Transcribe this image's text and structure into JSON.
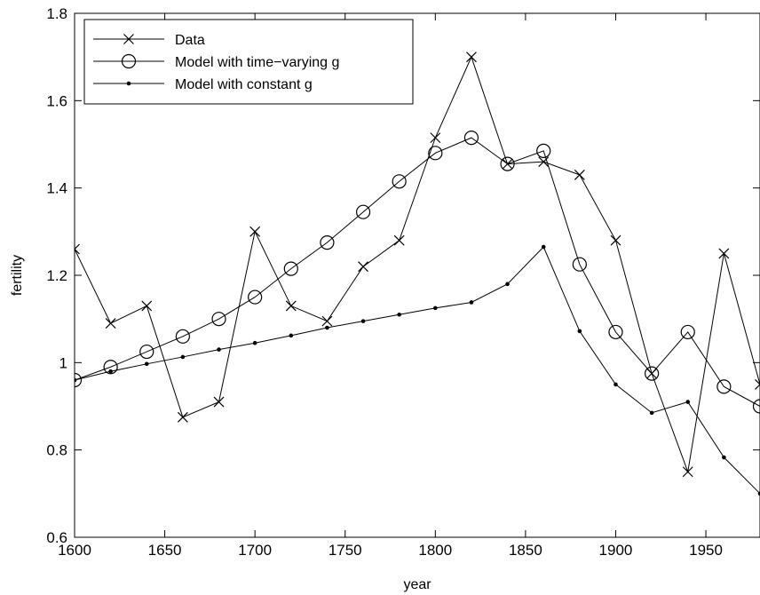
{
  "chart_data": {
    "type": "line",
    "xlabel": "year",
    "ylabel": "fertility",
    "xlim": [
      1600,
      1980
    ],
    "ylim": [
      0.6,
      1.8
    ],
    "xticks": [
      1600,
      1650,
      1700,
      1750,
      1800,
      1850,
      1900,
      1950
    ],
    "yticks": [
      0.6,
      0.8,
      1,
      1.2,
      1.4,
      1.6,
      1.8
    ],
    "xtick_labels": [
      "1600",
      "1650",
      "1700",
      "1750",
      "1800",
      "1850",
      "1900",
      "1950"
    ],
    "ytick_labels": [
      "0.6",
      "0.8",
      "1",
      "1.2",
      "1.4",
      "1.6",
      "1.8"
    ],
    "grid": false,
    "legend_position": "top-left",
    "series": [
      {
        "name": "Data",
        "marker": "x",
        "x": [
          1600,
          1620,
          1640,
          1660,
          1680,
          1700,
          1720,
          1740,
          1760,
          1780,
          1800,
          1820,
          1840,
          1860,
          1880,
          1900,
          1920,
          1940,
          1960,
          1980
        ],
        "y": [
          1.26,
          1.09,
          1.13,
          0.875,
          0.91,
          1.3,
          1.13,
          1.095,
          1.22,
          1.28,
          1.515,
          1.7,
          1.455,
          1.46,
          1.43,
          1.28,
          0.975,
          0.75,
          1.25,
          0.95
        ]
      },
      {
        "name": "Model with time−varying g",
        "marker": "o",
        "x": [
          1600,
          1620,
          1640,
          1660,
          1680,
          1700,
          1720,
          1740,
          1760,
          1780,
          1800,
          1820,
          1840,
          1860,
          1880,
          1900,
          1920,
          1940,
          1960,
          1980
        ],
        "y": [
          0.96,
          0.99,
          1.025,
          1.06,
          1.1,
          1.15,
          1.215,
          1.275,
          1.345,
          1.415,
          1.48,
          1.515,
          1.455,
          1.485,
          1.225,
          1.07,
          0.975,
          1.07,
          0.945,
          0.9
        ]
      },
      {
        "name": "Model with constant g",
        "marker": ".",
        "x": [
          1600,
          1620,
          1640,
          1660,
          1680,
          1700,
          1720,
          1740,
          1760,
          1780,
          1800,
          1820,
          1840,
          1860,
          1880,
          1900,
          1920,
          1940,
          1960,
          1980
        ],
        "y": [
          0.96,
          0.98,
          0.997,
          1.013,
          1.03,
          1.045,
          1.062,
          1.08,
          1.095,
          1.11,
          1.125,
          1.138,
          1.18,
          1.265,
          1.072,
          0.95,
          0.885,
          0.91,
          0.783,
          0.7
        ]
      }
    ]
  }
}
